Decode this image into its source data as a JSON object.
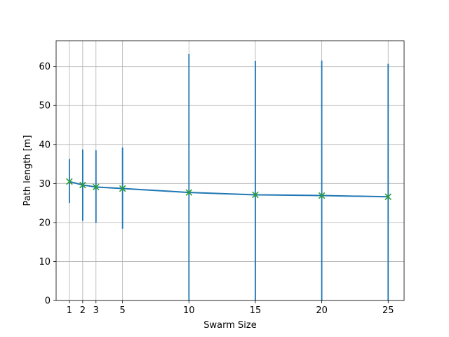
{
  "chart_data": {
    "type": "line",
    "title": "",
    "xlabel": "Swarm Size",
    "ylabel": "Path length [m]",
    "x": [
      1,
      2,
      3,
      5,
      10,
      15,
      20,
      25
    ],
    "xticks": [
      1,
      2,
      3,
      5,
      10,
      15,
      20,
      25
    ],
    "xlim": [
      0,
      26.2
    ],
    "ylim": [
      0,
      66.6
    ],
    "yticks": [
      0,
      10,
      20,
      30,
      40,
      50,
      60
    ],
    "grid": true,
    "series": [
      {
        "values": [
          30.5,
          29.6,
          29.1,
          28.7,
          27.7,
          27.1,
          26.9,
          26.6
        ],
        "err_low": [
          25.0,
          20.4,
          19.9,
          18.4,
          0,
          0,
          0,
          0
        ],
        "err_high": [
          36.3,
          38.7,
          38.5,
          39.2,
          63.2,
          61.4,
          61.5,
          60.7
        ],
        "marker": "x",
        "line_color": "#1f77b4",
        "marker_color": "#2ca02c"
      }
    ]
  },
  "colors": {
    "line": "#1f77b4",
    "marker": "#2ca02c",
    "grid": "#b0b0b0",
    "axes": "#000000"
  }
}
